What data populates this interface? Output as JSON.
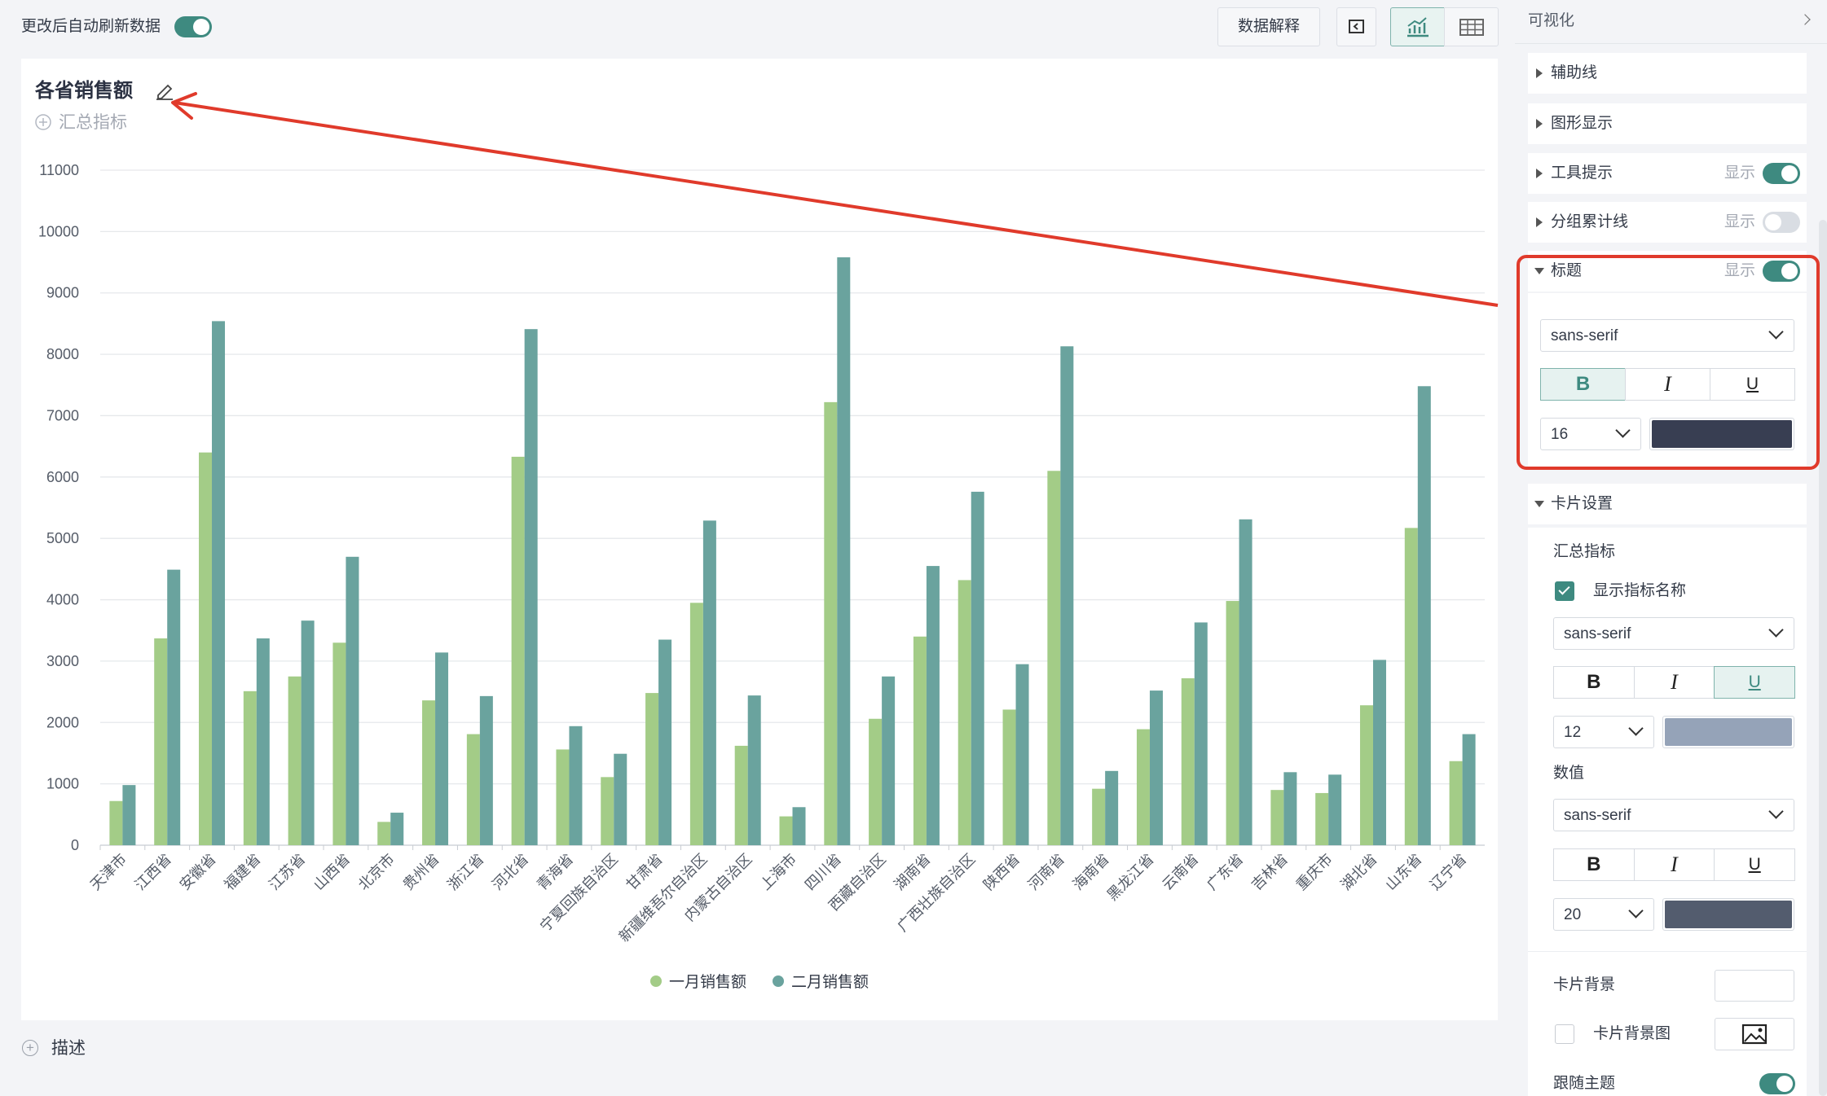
{
  "toolbar": {
    "auto_refresh": "更改后自动刷新数据",
    "auto_refresh_enabled": true,
    "explain": "数据解释"
  },
  "chart_data": {
    "type": "bar",
    "title": "各省销售额",
    "subtitle": "汇总指标",
    "categories": [
      "天津市",
      "江西省",
      "安徽省",
      "福建省",
      "江苏省",
      "山西省",
      "北京市",
      "贵州省",
      "浙江省",
      "河北省",
      "青海省",
      "宁夏回族自治区",
      "甘肃省",
      "新疆维吾尔自治区",
      "内蒙古自治区",
      "上海市",
      "四川省",
      "西藏自治区",
      "湖南省",
      "广西壮族自治区",
      "陕西省",
      "河南省",
      "海南省",
      "黑龙江省",
      "云南省",
      "广东省",
      "吉林省",
      "重庆市",
      "湖北省",
      "山东省",
      "辽宁省"
    ],
    "series": [
      {
        "name": "一月销售额",
        "color": "#a3cc87",
        "values": [
          720,
          3370,
          6400,
          2510,
          2750,
          3300,
          380,
          2360,
          1810,
          6330,
          1560,
          1110,
          2480,
          3950,
          1620,
          470,
          7220,
          2060,
          3400,
          4320,
          2210,
          6100,
          920,
          1890,
          2720,
          3980,
          900,
          850,
          2280,
          5170,
          1370
        ]
      },
      {
        "name": "二月销售额",
        "color": "#6aa39e",
        "values": [
          980,
          4490,
          8540,
          3370,
          3660,
          4700,
          530,
          3140,
          2430,
          8410,
          1940,
          1490,
          3350,
          5290,
          2440,
          620,
          9580,
          2750,
          4550,
          5760,
          2950,
          8130,
          1210,
          2520,
          3630,
          5310,
          1190,
          1150,
          3020,
          7480,
          1810
        ]
      }
    ],
    "ylim": [
      0,
      11000
    ],
    "yticks": [
      0,
      1000,
      2000,
      3000,
      4000,
      5000,
      6000,
      7000,
      8000,
      9000,
      10000,
      11000
    ],
    "grid": true,
    "legend": "bottom"
  },
  "description": "描述",
  "panel": {
    "title": "可视化",
    "sections": [
      {
        "label": "辅助线"
      },
      {
        "label": "图形显示"
      },
      {
        "label": "工具提示",
        "status": "显示",
        "enabled": true
      },
      {
        "label": "分组累计线",
        "status": "显示",
        "enabled": false
      },
      {
        "label": "标题",
        "status": "显示",
        "enabled": true,
        "expanded": true
      }
    ],
    "title_style": {
      "font": "sans-serif",
      "buttons": [
        "B",
        "I",
        "U"
      ],
      "active": "B",
      "size": 16,
      "color": "#383e52"
    },
    "card_settings": {
      "label": "卡片设置",
      "summary": {
        "label": "汇总指标",
        "show_name": "显示指标名称",
        "show_name_checked": true,
        "font": "sans-serif",
        "buttons": [
          "B",
          "I",
          "U"
        ],
        "active": "U",
        "size": 12,
        "color": "#95a3b8"
      },
      "value": {
        "label": "数值",
        "font": "sans-serif",
        "buttons": [
          "B",
          "I",
          "U"
        ],
        "size": 20,
        "color": "#535c6e"
      },
      "background": "卡片背景",
      "background_image": "卡片背景图",
      "background_image_checked": false,
      "follow_theme": "跟随主题",
      "follow_theme_enabled": true
    }
  }
}
